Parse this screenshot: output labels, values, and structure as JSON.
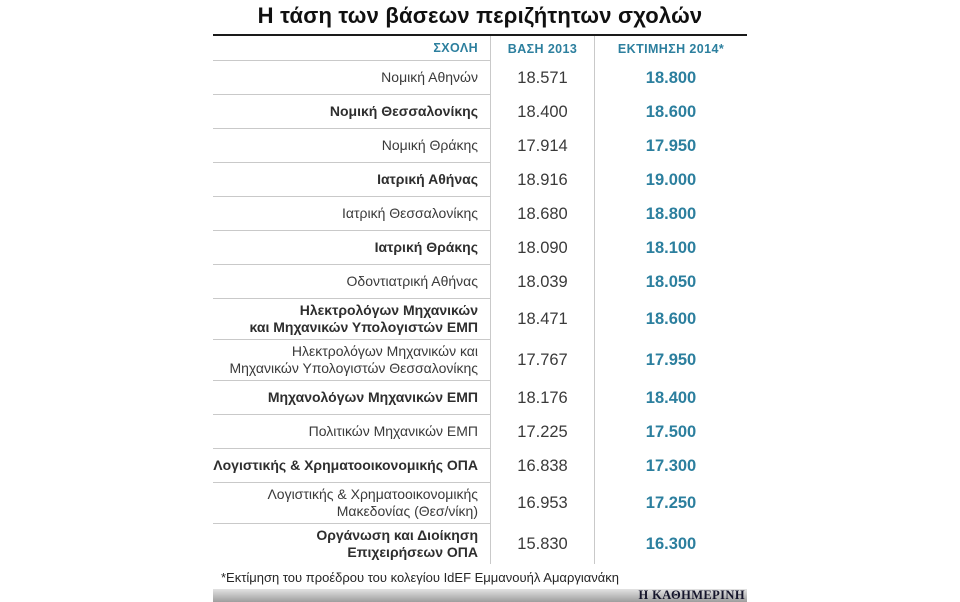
{
  "title": "Η τάση των βάσεων περιζήτητων σχολών",
  "table": {
    "headers": {
      "school": "ΣΧΟΛΗ",
      "base": "ΒΑΣΗ 2013",
      "estimate": "ΕΚΤΙΜΗΣΗ 2014*"
    },
    "rows": [
      {
        "school": "Νομική Αθηνών",
        "base": "18.571",
        "estimate": "18.800",
        "bold": false
      },
      {
        "school": "Νομική Θεσσαλονίκης",
        "base": "18.400",
        "estimate": "18.600",
        "bold": true
      },
      {
        "school": "Νομική Θράκης",
        "base": "17.914",
        "estimate": "17.950",
        "bold": false
      },
      {
        "school": "Ιατρική Αθήνας",
        "base": "18.916",
        "estimate": "19.000",
        "bold": true
      },
      {
        "school": "Ιατρική Θεσσαλονίκης",
        "base": "18.680",
        "estimate": "18.800",
        "bold": false
      },
      {
        "school": "Ιατρική Θράκης",
        "base": "18.090",
        "estimate": "18.100",
        "bold": true
      },
      {
        "school": "Οδοντιατρική Αθήνας",
        "base": "18.039",
        "estimate": "18.050",
        "bold": false
      },
      {
        "school": "Ηλεκτρολόγων Μηχανικών\nκαι Μηχανικών Υπολογιστών ΕΜΠ",
        "base": "18.471",
        "estimate": "18.600",
        "bold": true
      },
      {
        "school": "Ηλεκτρολόγων Μηχανικών και\nΜηχανικών Υπολογιστών Θεσσαλονίκης",
        "base": "17.767",
        "estimate": "17.950",
        "bold": false
      },
      {
        "school": "Μηχανολόγων Μηχανικών ΕΜΠ",
        "base": "18.176",
        "estimate": "18.400",
        "bold": true
      },
      {
        "school": "Πολιτικών Μηχανικών ΕΜΠ",
        "base": "17.225",
        "estimate": "17.500",
        "bold": false
      },
      {
        "school": "Λογιστικής & Χρηματοοικονομικής ΟΠΑ",
        "base": "16.838",
        "estimate": "17.300",
        "bold": true
      },
      {
        "school": "Λογιστικής & Χρηματοοικονομικής\nΜακεδονίας (Θεσ/νίκη)",
        "base": "16.953",
        "estimate": "17.250",
        "bold": false
      },
      {
        "school": "Οργάνωση και Διοίκηση\nΕπιχειρήσεων ΟΠΑ",
        "base": "15.830",
        "estimate": "16.300",
        "bold": true
      }
    ]
  },
  "footnote": "*Εκτίμηση του προέδρου του κολεγίου IdEF Εμμανουήλ Αμαργιανάκη",
  "source": "Η ΚΑΘΗΜΕΡΙΝΗ",
  "colors": {
    "accent": "#2c7f9e",
    "text": "#3a3a3a",
    "separator": "#c9c9c9"
  },
  "chart_data": {
    "type": "table",
    "title": "Η τάση των βάσεων περιζήτητων σχολών",
    "columns": [
      "ΣΧΟΛΗ",
      "ΒΑΣΗ 2013",
      "ΕΚΤΙΜΗΣΗ 2014*"
    ],
    "rows": [
      [
        "Νομική Αθηνών",
        18571,
        18800
      ],
      [
        "Νομική Θεσσαλονίκης",
        18400,
        18600
      ],
      [
        "Νομική Θράκης",
        17914,
        17950
      ],
      [
        "Ιατρική Αθήνας",
        18916,
        19000
      ],
      [
        "Ιατρική Θεσσαλονίκης",
        18680,
        18800
      ],
      [
        "Ιατρική Θράκης",
        18090,
        18100
      ],
      [
        "Οδοντιατρική Αθήνας",
        18039,
        18050
      ],
      [
        "Ηλεκτρολόγων Μηχανικών και Μηχανικών Υπολογιστών ΕΜΠ",
        18471,
        18600
      ],
      [
        "Ηλεκτρολόγων Μηχανικών και Μηχανικών Υπολογιστών Θεσσαλονίκης",
        17767,
        17950
      ],
      [
        "Μηχανολόγων Μηχανικών ΕΜΠ",
        18176,
        18400
      ],
      [
        "Πολιτικών Μηχανικών ΕΜΠ",
        17225,
        17500
      ],
      [
        "Λογιστικής & Χρηματοοικονομικής ΟΠΑ",
        16838,
        17300
      ],
      [
        "Λογιστικής & Χρηματοοικονομικής Μακεδονίας (Θεσ/νίκη)",
        16953,
        17250
      ],
      [
        "Οργάνωση και Διοίκηση Επιχειρήσεων ΟΠΑ",
        15830,
        16300
      ]
    ],
    "footnote": "*Εκτίμηση του προέδρου του κολεγίου IdEF Εμμανουήλ Αμαργιανάκη",
    "source": "Η ΚΑΘΗΜΕΡΙΝΗ"
  }
}
